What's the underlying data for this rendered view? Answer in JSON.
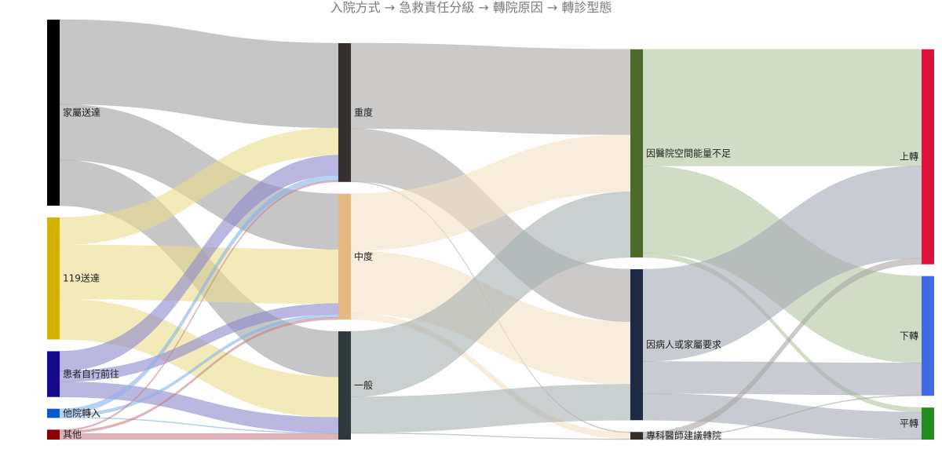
{
  "chart_data": {
    "type": "sankey",
    "title": "入院方式 → 急救責任分級 → 轉院原因 → 轉診型態",
    "nodes": [
      {
        "id": "family",
        "label": "家屬送達",
        "color": "#000000",
        "column": 0
      },
      {
        "id": "ems119",
        "label": "119送達",
        "color": "#d4b200",
        "column": 0
      },
      {
        "id": "self",
        "label": "患者自行前往",
        "color": "#140a8c",
        "column": 0
      },
      {
        "id": "transfer_in",
        "label": "他院轉入",
        "color": "#0a5ac8",
        "column": 0
      },
      {
        "id": "other",
        "label": "其他",
        "color": "#8b0000",
        "column": 0
      },
      {
        "id": "severe",
        "label": "重度",
        "color": "#36302e",
        "column": 1
      },
      {
        "id": "medium",
        "label": "中度",
        "color": "#e6b882",
        "column": 1
      },
      {
        "id": "general",
        "label": "一般",
        "color": "#2d3a3e",
        "column": 1
      },
      {
        "id": "space",
        "label": "因醫院空間能量不足",
        "color": "#4a6b2a",
        "column": 2
      },
      {
        "id": "request",
        "label": "因病人或家屬要求",
        "color": "#1e2a45",
        "column": 2
      },
      {
        "id": "specialist",
        "label": "專科醫師建議轉院",
        "color": "#332e28",
        "column": 2
      },
      {
        "id": "up",
        "label": "上轉",
        "color": "#dc143c",
        "column": 3
      },
      {
        "id": "down",
        "label": "下轉",
        "color": "#4169e1",
        "column": 3
      },
      {
        "id": "lateral",
        "label": "平轉",
        "color": "#228b22",
        "column": 3
      }
    ],
    "links": [
      {
        "source": "family",
        "target": "severe",
        "value": 111,
        "color": "#a0a0a0"
      },
      {
        "source": "family",
        "target": "medium",
        "value": 73,
        "color": "#a0a0a0"
      },
      {
        "source": "family",
        "target": "general",
        "value": 60,
        "color": "#a0a0a0"
      },
      {
        "source": "ems119",
        "target": "severe",
        "value": 36,
        "color": "#ebdc8c"
      },
      {
        "source": "ems119",
        "target": "medium",
        "value": 71,
        "color": "#ebdc8c"
      },
      {
        "source": "ems119",
        "target": "general",
        "value": 53,
        "color": "#ebdc8c"
      },
      {
        "source": "self",
        "target": "severe",
        "value": 26,
        "color": "#8c87cd"
      },
      {
        "source": "self",
        "target": "medium",
        "value": 14,
        "color": "#8c87cd"
      },
      {
        "source": "self",
        "target": "general",
        "value": 20,
        "color": "#8c87cd"
      },
      {
        "source": "transfer_in",
        "target": "severe",
        "value": 7,
        "color": "#87b4e6"
      },
      {
        "source": "transfer_in",
        "target": "medium",
        "value": 4,
        "color": "#87b4e6"
      },
      {
        "source": "transfer_in",
        "target": "general",
        "value": 1,
        "color": "#87b4e6"
      },
      {
        "source": "other",
        "target": "severe",
        "value": 2,
        "color": "#c8828c"
      },
      {
        "source": "other",
        "target": "medium",
        "value": 3,
        "color": "#c8828c"
      },
      {
        "source": "other",
        "target": "general",
        "value": 8,
        "color": "#c8828c"
      },
      {
        "source": "severe",
        "target": "space",
        "value": 112,
        "color": "#a8a6a4"
      },
      {
        "source": "severe",
        "target": "request",
        "value": 69,
        "color": "#a8a6a4"
      },
      {
        "source": "severe",
        "target": "specialist",
        "value": 1,
        "color": "#a8a6a4"
      },
      {
        "source": "medium",
        "target": "space",
        "value": 75,
        "color": "#f3dfc7"
      },
      {
        "source": "medium",
        "target": "request",
        "value": 82,
        "color": "#f3dfc7"
      },
      {
        "source": "medium",
        "target": "specialist",
        "value": 8,
        "color": "#f3dfc7"
      },
      {
        "source": "general",
        "target": "space",
        "value": 86,
        "color": "#a7afb0"
      },
      {
        "source": "general",
        "target": "request",
        "value": 47,
        "color": "#a7afb0"
      },
      {
        "source": "general",
        "target": "specialist",
        "value": 1,
        "color": "#a7afb0"
      },
      {
        "source": "space",
        "target": "up",
        "value": 153,
        "color": "#b2c4a0"
      },
      {
        "source": "space",
        "target": "down",
        "value": 114,
        "color": "#b2c4a0"
      },
      {
        "source": "space",
        "target": "lateral",
        "value": 6,
        "color": "#b2c4a0"
      },
      {
        "source": "request",
        "target": "up",
        "value": 121,
        "color": "#a3a8b3"
      },
      {
        "source": "request",
        "target": "down",
        "value": 42,
        "color": "#a3a8b3"
      },
      {
        "source": "request",
        "target": "lateral",
        "value": 35,
        "color": "#a3a8b3"
      },
      {
        "source": "specialist",
        "target": "up",
        "value": 8,
        "color": "#a8a6a4"
      },
      {
        "source": "specialist",
        "target": "down",
        "value": 1,
        "color": "#a8a6a4"
      },
      {
        "source": "specialist",
        "target": "lateral",
        "value": 1,
        "color": "#a8a6a4"
      }
    ]
  }
}
